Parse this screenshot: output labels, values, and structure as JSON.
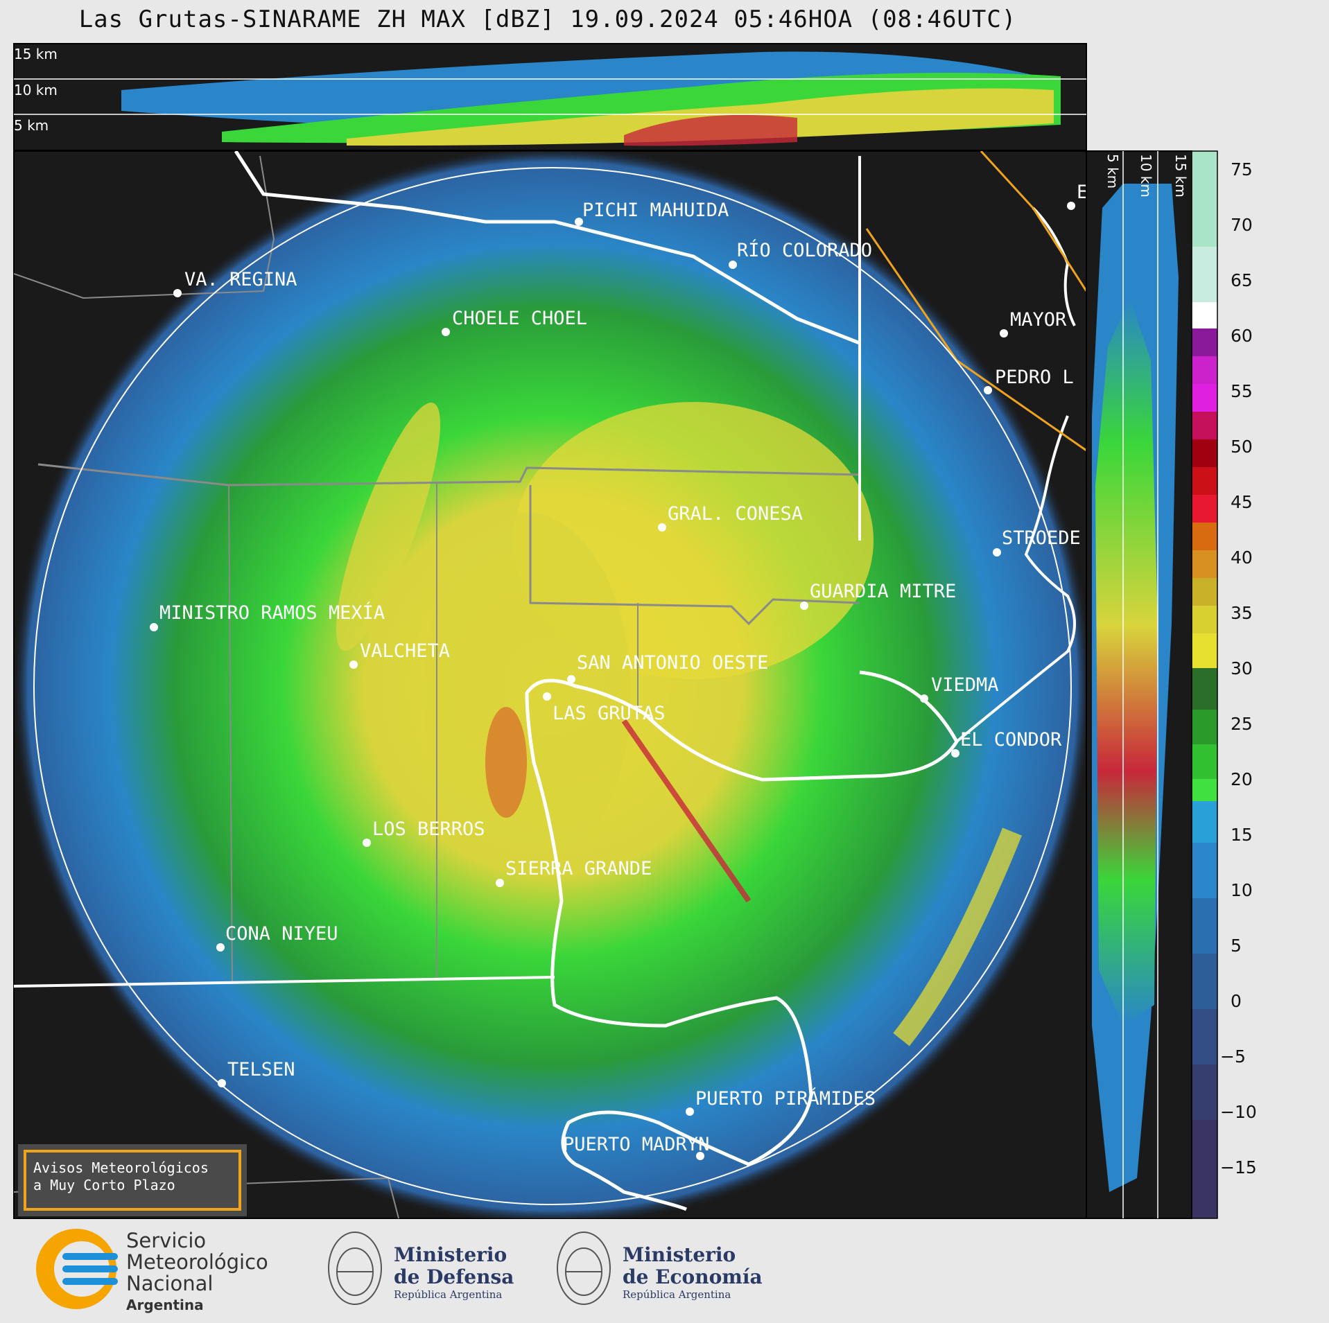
{
  "title": "Las Grutas-SINARAME ZH MAX [dBZ] 19.09.2024 05:46HOA (08:46UTC)",
  "top_panel_heights": [
    "15 km",
    "10 km",
    "5 km"
  ],
  "side_panel_heights": [
    "5 km",
    "10 km",
    "15 km"
  ],
  "colorbar": {
    "ticks": [
      "75",
      "70",
      "65",
      "60",
      "55",
      "50",
      "45",
      "40",
      "35",
      "30",
      "25",
      "20",
      "15",
      "10",
      "5",
      "0",
      "−5",
      "−10",
      "−15"
    ]
  },
  "places": [
    {
      "name": "PICHI MAHUIDA"
    },
    {
      "name": "RÍO COLORADO"
    },
    {
      "name": "VA. REGINA"
    },
    {
      "name": "CHOELE CHOEL"
    },
    {
      "name": "MAYOR"
    },
    {
      "name": "PEDRO L"
    },
    {
      "name": "GRAL. CONESA"
    },
    {
      "name": "STROEDE"
    },
    {
      "name": "GUARDIA MITRE"
    },
    {
      "name": "MINISTRO RAMOS MEXÍA"
    },
    {
      "name": "VALCHETA"
    },
    {
      "name": "SAN ANTONIO OESTE"
    },
    {
      "name": "VIEDMA"
    },
    {
      "name": "LAS GRUTAS"
    },
    {
      "name": "EL CONDOR"
    },
    {
      "name": "LOS BERROS"
    },
    {
      "name": "SIERRA GRANDE"
    },
    {
      "name": "CONA NIYEU"
    },
    {
      "name": "TELSEN"
    },
    {
      "name": "PUERTO PIRÁMIDES"
    },
    {
      "name": "PUERTO MADRYN"
    },
    {
      "name": "E"
    }
  ],
  "warning": {
    "line1": "Avisos Meteorológicos",
    "line2": "a Muy Corto Plazo"
  },
  "footer": {
    "smn": {
      "line1": "Servicio",
      "line2": "Meteorológico",
      "line3": "Nacional",
      "line4": "Argentina"
    },
    "defensa": {
      "line1": "Ministerio",
      "line2": "de Defensa",
      "line3": "República Argentina"
    },
    "economia": {
      "line1": "Ministerio",
      "line2": "de Economía",
      "line3": "República Argentina"
    }
  },
  "colors": {
    "background": "#1a1a1a",
    "page": "#e8e8e8",
    "accent_orange": "#f0a41c"
  }
}
